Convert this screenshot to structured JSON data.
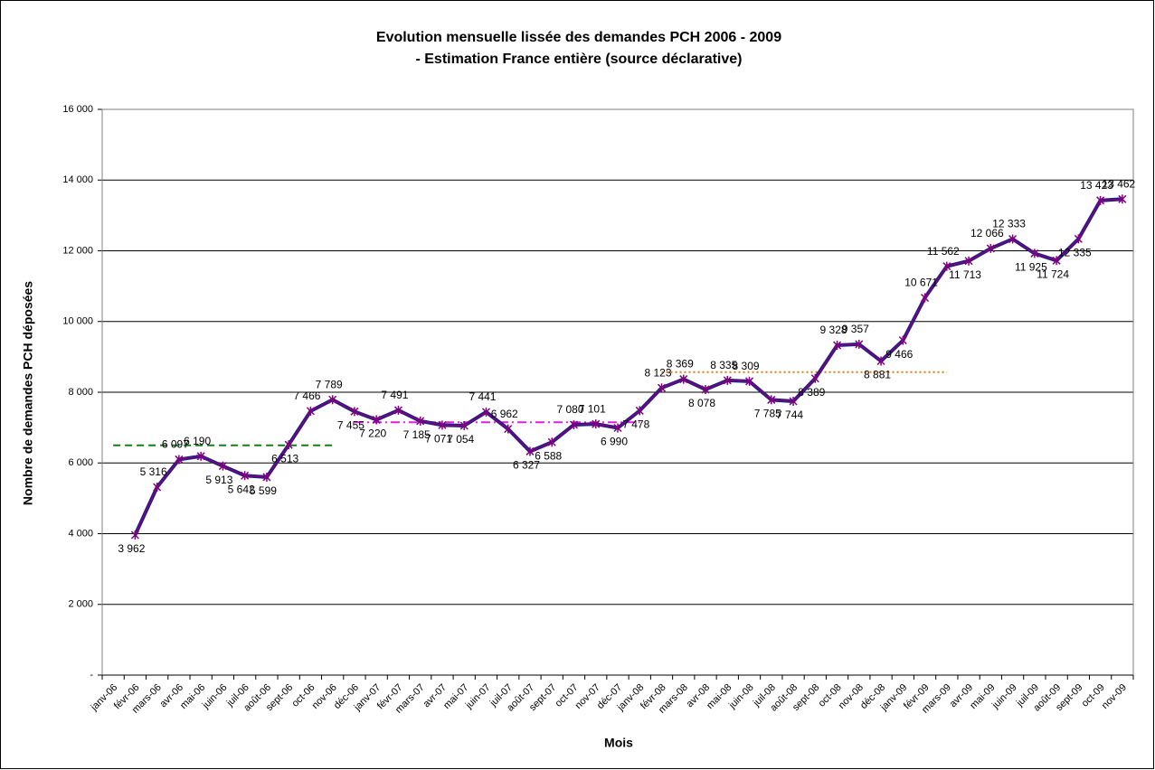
{
  "chart_data": {
    "type": "line",
    "title": [
      "Evolution mensuelle lissée des demandes PCH 2006 - 2009",
      "- Estimation France entière  (source déclarative)"
    ],
    "y_label": "Nombre de demandes PCH déposées",
    "x_label": "Mois",
    "categories": [
      "janv-06",
      "févr-06",
      "mars-06",
      "avr-06",
      "mai-06",
      "juin-06",
      "juil-06",
      "août-06",
      "sept-06",
      "oct-06",
      "nov-06",
      "déc-06",
      "janv-07",
      "févr-07",
      "mars-07",
      "avr-07",
      "mai-07",
      "juin-07",
      "juil-07",
      "août-07",
      "sept-07",
      "oct-07",
      "nov-07",
      "déc-07",
      "janv-08",
      "févr-08",
      "mars-08",
      "avr-08",
      "mai-08",
      "juin-08",
      "juil-08",
      "août-08",
      "sept-08",
      "oct-08",
      "nov-08",
      "déc-08",
      "janv-09",
      "févr-09",
      "mars-09",
      "avr-09",
      "mai-09",
      "juin-09",
      "juil-09",
      "août-09",
      "sept-09",
      "oct-09",
      "nov-09"
    ],
    "values": [
      null,
      3962,
      5316,
      6097,
      6190,
      5913,
      5642,
      5599,
      6513,
      7466,
      7789,
      7455,
      7220,
      7491,
      7185,
      7071,
      7054,
      7441,
      6962,
      6327,
      6588,
      7080,
      7101,
      6990,
      7478,
      8123,
      8369,
      8078,
      8335,
      8309,
      7785,
      7744,
      8389,
      9328,
      9357,
      8881,
      9466,
      10671,
      11562,
      11713,
      12066,
      12333,
      11925,
      11724,
      12335,
      13423,
      13462
    ],
    "value_labels": [
      null,
      "3 962",
      "5 316",
      "6 097",
      "6 190",
      "5 913",
      "5 642",
      "5 599",
      "6 513",
      "7 466",
      "7 789",
      "7 455",
      "7 220",
      "7 491",
      "7 185",
      "7 071",
      "7 054",
      "7 441",
      "6 962",
      "6 327",
      "6 588",
      "7 080",
      "7 101",
      "6 990",
      "7 478",
      "8 123",
      "8 369",
      "8 078",
      "8 335",
      "8 309",
      "7 785",
      "7 744",
      "8 389",
      "9 328",
      "9 357",
      "8 881",
      "9 466",
      "10 671",
      "11 562",
      "11 713",
      "12 066",
      "12 333",
      "11 925",
      "11 724",
      "12 335",
      "13 423",
      "13 462"
    ],
    "color": "#800080",
    "reference_lines": [
      {
        "value": 6500,
        "start": "janv-06",
        "end": "nov-06",
        "color": "#1a7a1a",
        "dash": "8 5"
      },
      {
        "value": 7150,
        "start": "déc-06",
        "end": "janv-08",
        "color": "#e020e0",
        "dash": "10 4 2 4"
      },
      {
        "value": 8570,
        "start": "févr-08",
        "end": "mars-09",
        "color": "#e07a10",
        "dash": "2 3"
      }
    ],
    "ylim": [
      0,
      16000
    ],
    "yticks": [
      {
        "value": 0,
        "label": "-"
      },
      {
        "value": 2000,
        "label": "2 000"
      },
      {
        "value": 4000,
        "label": "4 000"
      },
      {
        "value": 6000,
        "label": "6 000"
      },
      {
        "value": 8000,
        "label": "8 000"
      },
      {
        "value": 10000,
        "label": "10 000"
      },
      {
        "value": 12000,
        "label": "12 000"
      },
      {
        "value": 14000,
        "label": "14 000"
      },
      {
        "value": 16000,
        "label": "16 000"
      }
    ],
    "grid": true
  }
}
